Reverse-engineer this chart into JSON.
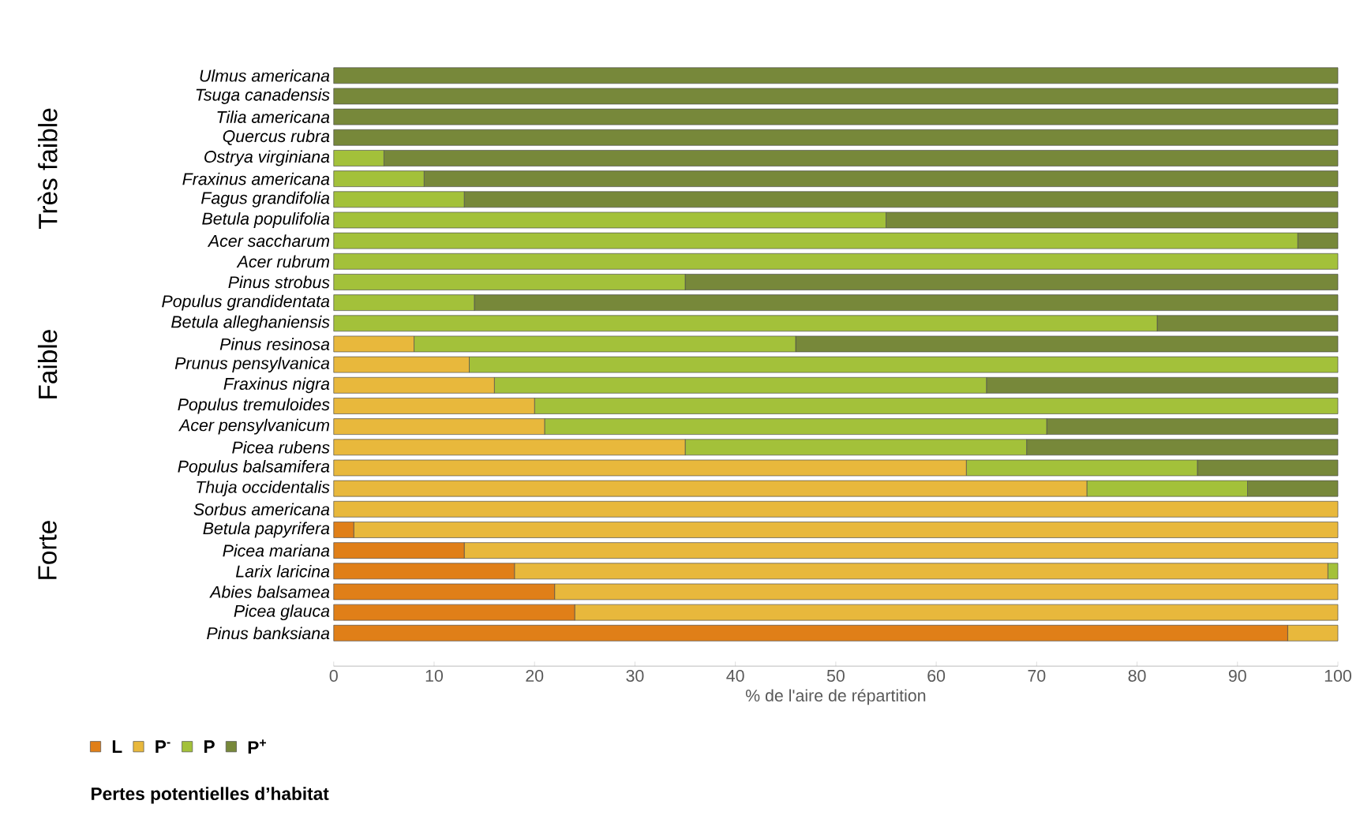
{
  "chart_data": {
    "type": "bar",
    "orientation": "horizontal",
    "stacked": true,
    "categories": [
      "Ulmus americana",
      "Tsuga canadensis",
      "Tilia americana",
      "Quercus rubra",
      "Ostrya virginiana",
      "Fraxinus americana",
      "Fagus grandifolia",
      "Betula populifolia",
      "Acer saccharum",
      "Acer rubrum",
      "Pinus strobus",
      "Populus grandidentata",
      "Betula alleghaniensis",
      "Pinus resinosa",
      "Prunus pensylvanica",
      "Fraxinus nigra",
      "Populus tremuloides",
      "Acer pensylvanicum",
      "Picea rubens",
      "Populus balsamifera",
      "Thuja occidentalis",
      "Sorbus americana",
      "Betula papyrifera",
      "Picea mariana",
      "Larix laricina",
      "Abies balsamea",
      "Picea glauca",
      "Pinus banksiana"
    ],
    "series": [
      {
        "name": "L",
        "color": "#e07f18",
        "values": [
          0,
          0,
          0,
          0,
          0,
          0,
          0,
          0,
          0,
          0,
          0,
          0,
          0,
          0,
          0,
          0,
          0,
          0,
          0,
          0,
          0,
          0,
          2,
          13,
          18,
          22,
          24,
          95
        ]
      },
      {
        "name": "P$^{-}$",
        "color": "#e8b83c",
        "values": [
          0,
          0,
          0,
          0,
          0,
          0,
          0,
          0,
          0,
          0,
          0,
          0,
          0,
          8,
          13.5,
          16,
          20,
          21,
          35,
          63,
          75,
          100,
          98,
          87,
          81,
          78,
          76,
          5
        ]
      },
      {
        "name": "P",
        "color": "#a3c13a",
        "values": [
          0,
          0,
          0,
          0,
          5,
          9,
          13,
          55,
          96,
          100,
          35,
          14,
          82,
          38,
          86.5,
          49,
          80,
          50,
          34,
          23,
          16,
          0,
          0,
          0,
          1,
          0,
          0,
          0
        ]
      },
      {
        "name": "P$^{+}$",
        "color": "#77883a",
        "values": [
          100,
          100,
          100,
          100,
          95,
          91,
          87,
          45,
          4,
          0,
          65,
          86,
          18,
          54,
          0,
          35,
          0,
          29,
          31,
          14,
          9,
          0,
          0,
          0,
          0,
          0,
          0,
          0
        ]
      }
    ],
    "xlim": [
      0,
      100
    ],
    "xticks": [
      0,
      10,
      20,
      30,
      40,
      50,
      60,
      70,
      80,
      90,
      100
    ],
    "xlabel": "% de l'aire de répartition",
    "legend": "bottom left",
    "annotations": [
      "Très faible",
      "Faible",
      "Forte",
      "Pertes potentielles d’habitat"
    ]
  }
}
